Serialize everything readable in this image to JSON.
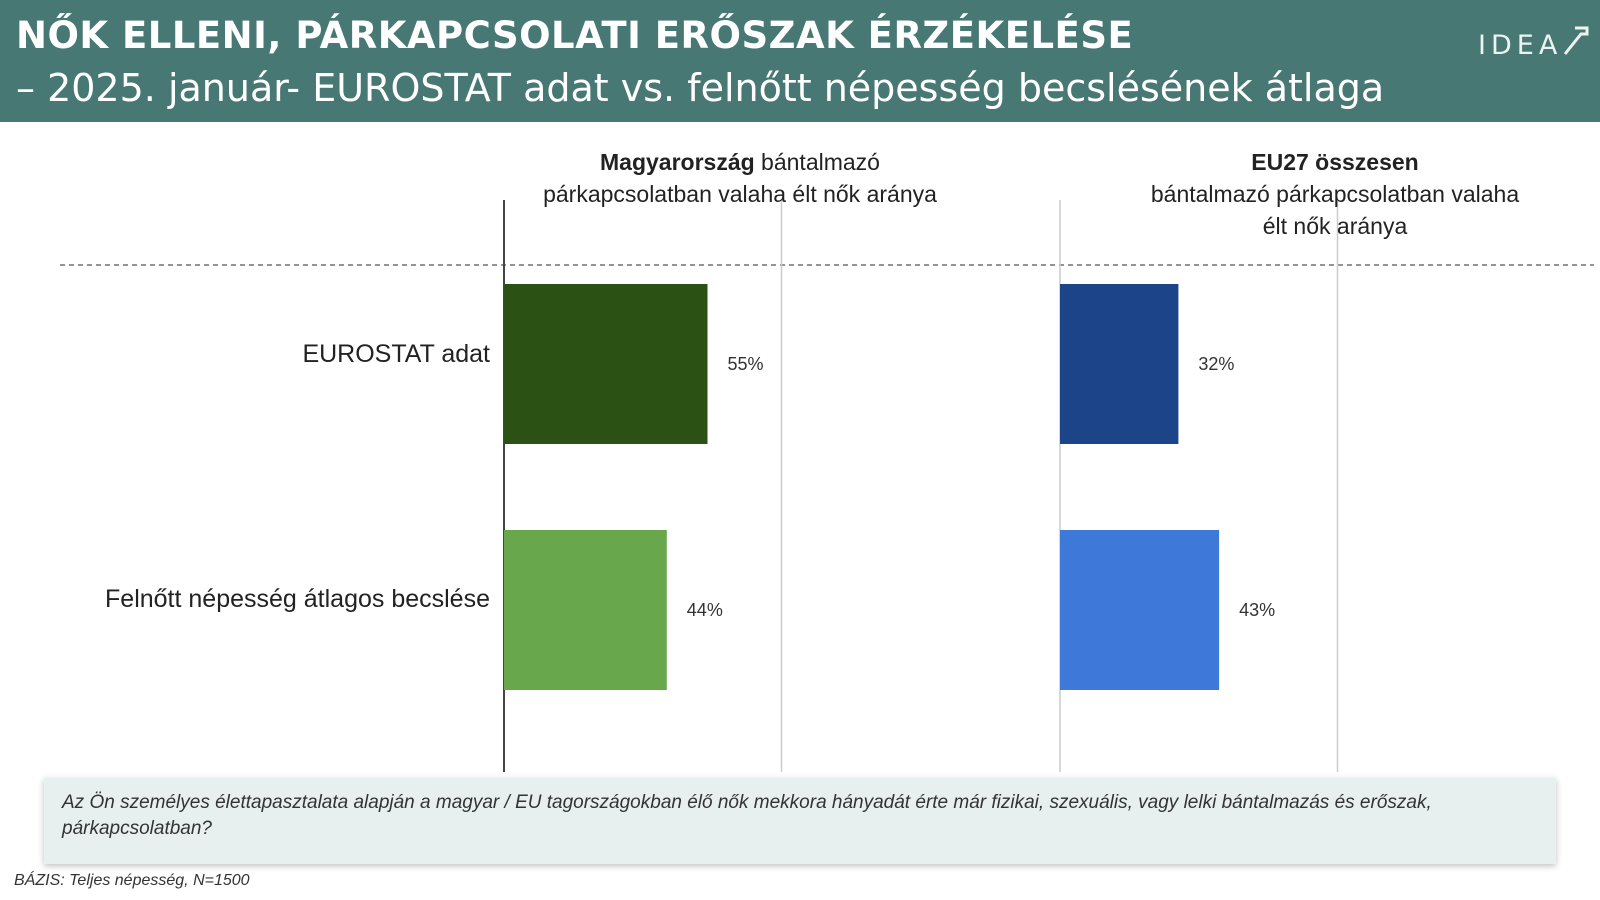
{
  "header": {
    "title_line1": "NŐK ELLENI, PÁRKAPCSOLATI ERŐSZAK ÉRZÉKELÉSE",
    "title_line2": "– 2025. január- EUROSTAT adat vs. felnőtt népesség becslésének átlaga",
    "logo": "IDEA"
  },
  "chart_data": {
    "type": "bar",
    "orientation": "horizontal",
    "categories": [
      "EUROSTAT adat",
      "Felnőtt népesség átlagos becslése"
    ],
    "panels": [
      {
        "title_bold": "Magyarország",
        "title_rest": " bántalmazó párkapcsolatban valaha élt nők aránya",
        "values": [
          55,
          44
        ],
        "labels": [
          "55%",
          "44%"
        ],
        "colors": [
          "#2b5114",
          "#69a74c"
        ],
        "xlim": [
          0,
          100
        ]
      },
      {
        "title_bold": "EU27 összesen",
        "title_rest": "bántalmazó párkapcsolatban valaha élt nők aránya",
        "values": [
          32,
          43
        ],
        "labels": [
          "32%",
          "43%"
        ],
        "colors": [
          "#1c4488",
          "#3e78d9"
        ],
        "xlim": [
          0,
          100
        ]
      }
    ],
    "grid": true
  },
  "footer": {
    "question": "Az Ön személyes élettapasztalata alapján a magyar / EU tagországokban élő nők mekkora hányadát érte már fizikai, szexuális, vagy lelki bántalmazás és erőszak, párkapcsolatban?",
    "base": "BÁZIS: Teljes népesség, N=1500"
  }
}
